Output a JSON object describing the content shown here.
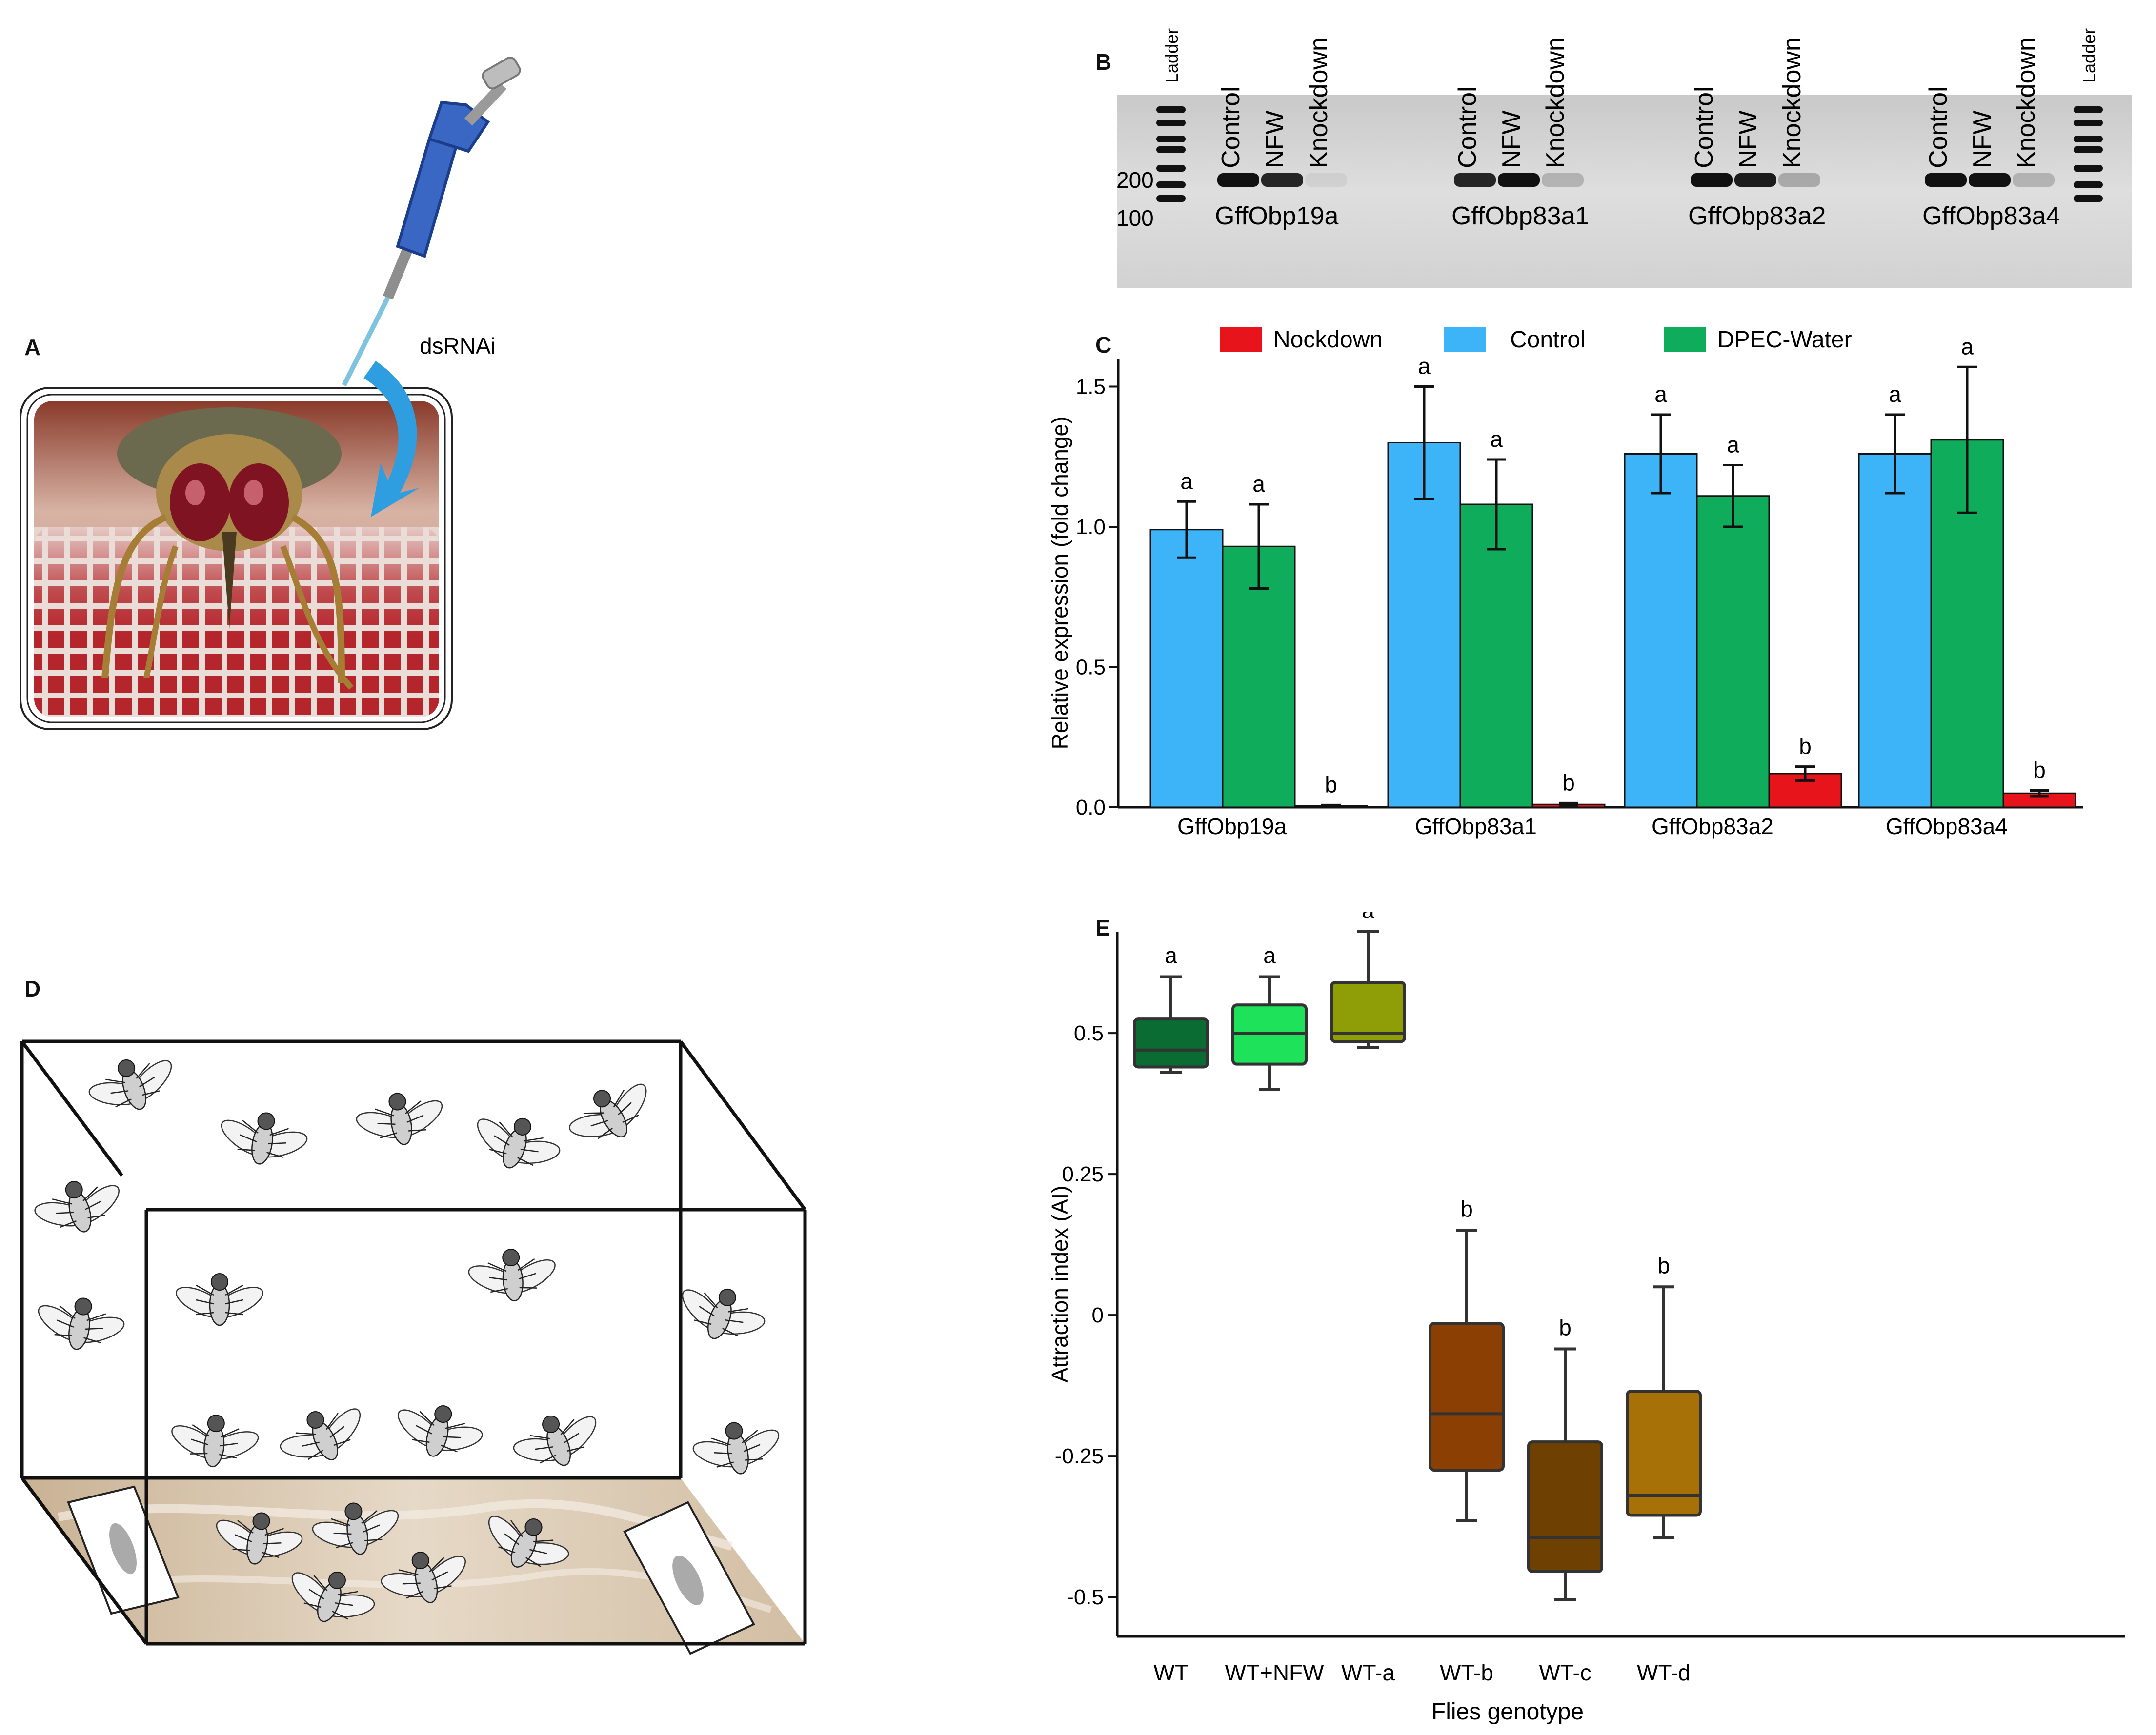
{
  "panels": {
    "a": {
      "letter": "A",
      "label": "dsRNAi"
    },
    "b": {
      "letter": "B"
    },
    "c": {
      "letter": "C"
    },
    "d": {
      "letter": "D"
    },
    "e": {
      "letter": "E"
    }
  },
  "colors": {
    "nockdown": "#e8141c",
    "control": "#3db4f7",
    "dpec_water": "#0fad5b",
    "pipette_body": "#3a66c4",
    "tray": "#d7c5ad"
  },
  "gel": {
    "ladder_label": "Ladder",
    "markers": [
      "200",
      "100"
    ],
    "lane_labels": [
      "Control",
      "NFW",
      "Knockdown"
    ],
    "genes": [
      "GffObp19a",
      "GffObp83a1",
      "GffObp83a2",
      "GffObp83a4"
    ]
  },
  "chart_data": [
    {
      "type": "bar",
      "title": "",
      "ylabel": "Relative expression (fold change)",
      "xlabel": "",
      "ylim": [
        0,
        1.6
      ],
      "yticks": [
        0.0,
        0.5,
        1.0,
        1.5
      ],
      "ytick_labels": [
        "0.0",
        "0.5",
        "1.0",
        "1.5"
      ],
      "legend_position": "top",
      "categories": [
        "GffObp19a",
        "GffObp83a1",
        "GffObp83a2",
        "GffObp83a4"
      ],
      "series": [
        {
          "name": "Control",
          "values": [
            0.99,
            1.3,
            1.26,
            1.26
          ],
          "errors": [
            0.1,
            0.2,
            0.14,
            0.14
          ],
          "letters": [
            "a",
            "a",
            "a",
            "a"
          ]
        },
        {
          "name": "DPEC-Water",
          "values": [
            0.93,
            1.08,
            1.11,
            1.31
          ],
          "errors": [
            0.15,
            0.16,
            0.11,
            0.26
          ],
          "letters": [
            "a",
            "a",
            "a",
            "a"
          ]
        },
        {
          "name": "Nockdown",
          "values": [
            0.005,
            0.01,
            0.12,
            0.05
          ],
          "errors": [
            0.003,
            0.005,
            0.025,
            0.01
          ],
          "letters": [
            "b",
            "b",
            "b",
            "b"
          ]
        }
      ]
    },
    {
      "type": "box",
      "title": "",
      "ylabel": "Attraction index (AI)",
      "xlabel": "Flies genotype",
      "ylim": [
        -0.57,
        0.68
      ],
      "yticks": [
        0.5,
        0.25,
        0,
        -0.25,
        -0.5
      ],
      "ytick_labels": [
        "0.5",
        "0.25",
        "0",
        "-0.25",
        "-0.5"
      ],
      "categories": [
        "WT",
        "WT+NFW",
        "WT-a",
        "WT-b",
        "WT-c",
        "WT-d"
      ],
      "boxes": [
        {
          "min": 0.43,
          "q1": 0.44,
          "median": 0.47,
          "q3": 0.525,
          "max": 0.6,
          "letter": "a",
          "color": "#0a6b33"
        },
        {
          "min": 0.4,
          "q1": 0.445,
          "median": 0.5,
          "q3": 0.55,
          "max": 0.6,
          "letter": "a",
          "color": "#1ee35a"
        },
        {
          "min": 0.475,
          "q1": 0.485,
          "median": 0.5,
          "q3": 0.59,
          "max": 0.68,
          "letter": "a",
          "color": "#8f9e07"
        },
        {
          "min": -0.365,
          "q1": -0.275,
          "median": -0.175,
          "q3": -0.015,
          "max": 0.15,
          "letter": "b",
          "color": "#8c3f02"
        },
        {
          "min": -0.505,
          "q1": -0.455,
          "median": -0.395,
          "q3": -0.225,
          "max": -0.06,
          "letter": "b",
          "color": "#6e4102"
        },
        {
          "min": -0.395,
          "q1": -0.355,
          "median": -0.32,
          "q3": -0.135,
          "max": 0.05,
          "letter": "b",
          "color": "#a87108"
        }
      ]
    }
  ]
}
